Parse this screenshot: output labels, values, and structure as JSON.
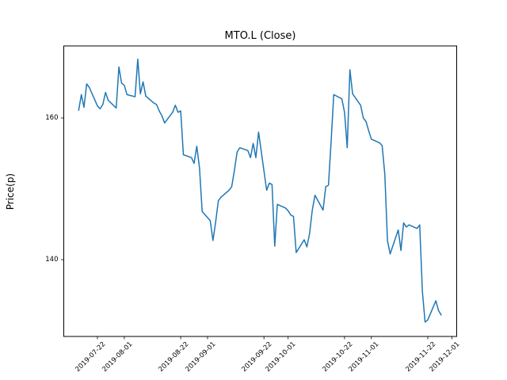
{
  "figure": {
    "background": "#ffffff",
    "text_color": "#000000"
  },
  "chart_data": {
    "type": "line",
    "title": "MTO.L (Close)",
    "xlabel": "",
    "ylabel": "Price(p)",
    "grid": false,
    "legend": "none",
    "ylim": [
      129.2,
      170.3
    ],
    "xlim": [
      "2019-07-09",
      "2019-12-03"
    ],
    "y_ticks": [
      160,
      140
    ],
    "x_ticks": [
      "2019-07-22",
      "2019-08-01",
      "2019-08-22",
      "2019-09-01",
      "2019-09-22",
      "2019-10-01",
      "2019-10-22",
      "2019-11-01",
      "2019-11-22",
      "2019-12-01"
    ],
    "series": [
      {
        "name": "Close",
        "color": "#1f77b4",
        "dates": [
          "2019-07-15",
          "2019-07-16",
          "2019-07-17",
          "2019-07-18",
          "2019-07-19",
          "2019-07-22",
          "2019-07-23",
          "2019-07-24",
          "2019-07-25",
          "2019-07-26",
          "2019-07-29",
          "2019-07-30",
          "2019-07-31",
          "2019-08-01",
          "2019-08-02",
          "2019-08-05",
          "2019-08-06",
          "2019-08-07",
          "2019-08-08",
          "2019-08-09",
          "2019-08-12",
          "2019-08-13",
          "2019-08-14",
          "2019-08-15",
          "2019-08-16",
          "2019-08-19",
          "2019-08-20",
          "2019-08-21",
          "2019-08-22",
          "2019-08-23",
          "2019-08-26",
          "2019-08-27",
          "2019-08-28",
          "2019-08-29",
          "2019-08-30",
          "2019-09-02",
          "2019-09-03",
          "2019-09-04",
          "2019-09-05",
          "2019-09-06",
          "2019-09-09",
          "2019-09-10",
          "2019-09-11",
          "2019-09-12",
          "2019-09-13",
          "2019-09-16",
          "2019-09-17",
          "2019-09-18",
          "2019-09-19",
          "2019-09-20",
          "2019-09-23",
          "2019-09-24",
          "2019-09-25",
          "2019-09-26",
          "2019-09-27",
          "2019-09-30",
          "2019-10-01",
          "2019-10-02",
          "2019-10-03",
          "2019-10-04",
          "2019-10-07",
          "2019-10-08",
          "2019-10-09",
          "2019-10-10",
          "2019-10-11",
          "2019-10-14",
          "2019-10-15",
          "2019-10-16",
          "2019-10-17",
          "2019-10-18",
          "2019-10-21",
          "2019-10-22",
          "2019-10-23",
          "2019-10-24",
          "2019-10-25",
          "2019-10-28",
          "2019-10-29",
          "2019-10-30",
          "2019-10-31",
          "2019-11-01",
          "2019-11-04",
          "2019-11-05",
          "2019-11-06",
          "2019-11-07",
          "2019-11-08",
          "2019-11-11",
          "2019-11-12",
          "2019-11-13",
          "2019-11-14",
          "2019-11-15",
          "2019-11-18",
          "2019-11-19",
          "2019-11-20",
          "2019-11-21",
          "2019-11-22",
          "2019-11-25",
          "2019-11-26",
          "2019-11-27"
        ],
        "values": [
          161.1,
          163.3,
          161.5,
          164.8,
          164.3,
          161.7,
          161.3,
          161.9,
          163.6,
          162.5,
          161.4,
          167.2,
          164.9,
          164.6,
          163.3,
          163.0,
          168.3,
          163.4,
          165.1,
          163.1,
          162.1,
          161.9,
          161.0,
          160.3,
          159.3,
          160.8,
          161.8,
          160.8,
          161.0,
          154.8,
          154.4,
          153.6,
          156.0,
          153.0,
          146.8,
          145.5,
          142.7,
          145.3,
          148.3,
          148.8,
          149.8,
          150.3,
          152.6,
          155.2,
          155.8,
          155.4,
          154.4,
          156.4,
          154.4,
          158.0,
          149.8,
          150.8,
          150.6,
          141.9,
          147.8,
          147.3,
          146.9,
          146.3,
          146.1,
          141.0,
          142.8,
          141.8,
          143.7,
          147.0,
          149.1,
          147.0,
          150.3,
          150.5,
          156.5,
          163.3,
          162.7,
          160.8,
          155.8,
          166.8,
          163.4,
          161.8,
          160.0,
          159.5,
          158.2,
          157.0,
          156.5,
          156.1,
          152.0,
          142.7,
          140.8,
          144.2,
          141.3,
          145.2,
          144.6,
          144.9,
          144.4,
          144.9,
          135.5,
          131.2,
          131.5,
          134.2,
          132.8,
          132.2
        ]
      }
    ]
  }
}
